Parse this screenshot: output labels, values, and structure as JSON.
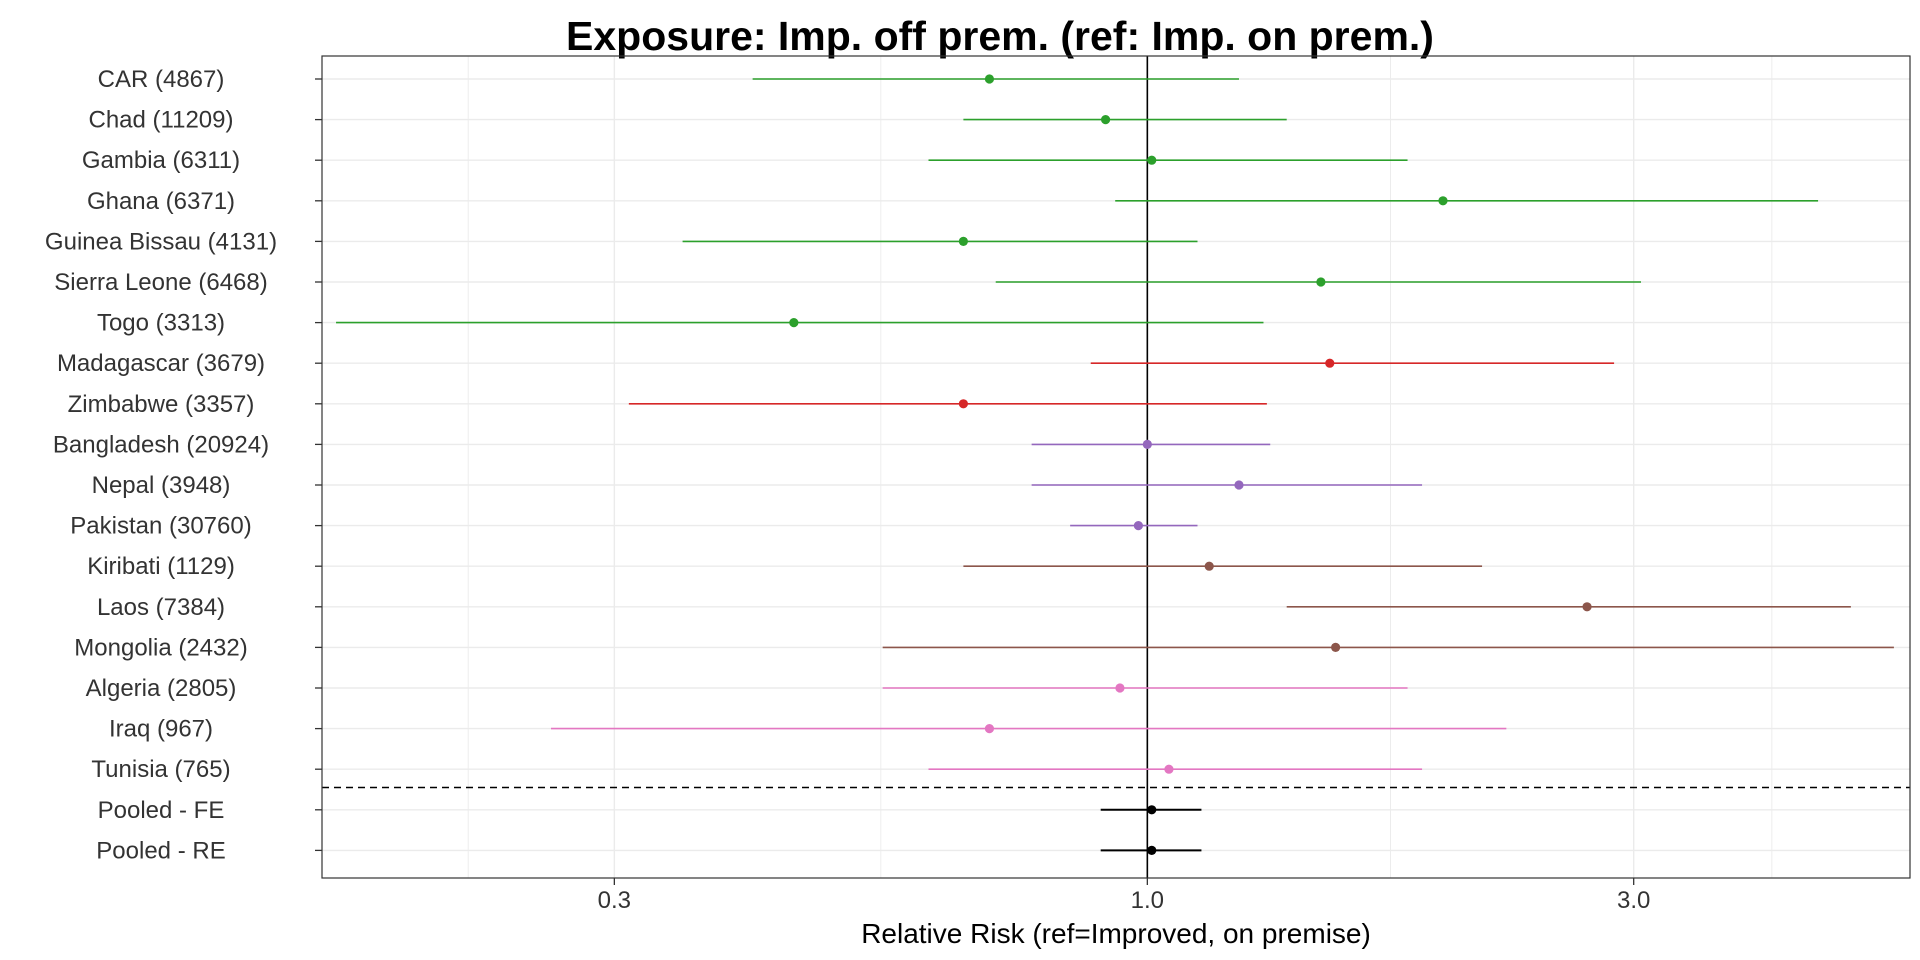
{
  "chart_data": {
    "type": "forest",
    "title": "Exposure: Imp. off prem. (ref: Imp. on prem.)",
    "xlabel": "Relative Risk (ref=Improved, on premise)",
    "x_scale": "log",
    "xlim": [
      0.155,
      5.6
    ],
    "x_ticks": [
      {
        "value": 0.3,
        "label": "0.3"
      },
      {
        "value": 1.0,
        "label": "1.0"
      },
      {
        "value": 3.0,
        "label": "3.0"
      }
    ],
    "reference_line": 1.0,
    "grid": true,
    "separator_after_row": "Tunisia (765)",
    "rows": [
      {
        "label": "CAR (4867)",
        "estimate": 0.7,
        "lower": 0.41,
        "upper": 1.23,
        "color": "#2ca02c"
      },
      {
        "label": "Chad (11209)",
        "estimate": 0.91,
        "lower": 0.66,
        "upper": 1.37,
        "color": "#2ca02c"
      },
      {
        "label": "Gambia (6311)",
        "estimate": 1.01,
        "lower": 0.61,
        "upper": 1.8,
        "color": "#2ca02c"
      },
      {
        "label": "Ghana (6371)",
        "estimate": 1.95,
        "lower": 0.93,
        "upper": 4.55,
        "color": "#2ca02c"
      },
      {
        "label": "Guinea Bissau (4131)",
        "estimate": 0.66,
        "lower": 0.35,
        "upper": 1.12,
        "color": "#2ca02c"
      },
      {
        "label": "Sierra Leone (6468)",
        "estimate": 1.48,
        "lower": 0.71,
        "upper": 3.05,
        "color": "#2ca02c"
      },
      {
        "label": "Togo (3313)",
        "estimate": 0.45,
        "lower": 0.16,
        "upper": 1.3,
        "color": "#2ca02c"
      },
      {
        "label": "Madagascar (3679)",
        "estimate": 1.51,
        "lower": 0.88,
        "upper": 2.87,
        "color": "#d62728"
      },
      {
        "label": "Zimbabwe (3357)",
        "estimate": 0.66,
        "lower": 0.31,
        "upper": 1.31,
        "color": "#d62728"
      },
      {
        "label": "Bangladesh (20924)",
        "estimate": 1.0,
        "lower": 0.77,
        "upper": 1.32,
        "color": "#9467bd"
      },
      {
        "label": "Nepal (3948)",
        "estimate": 1.23,
        "lower": 0.77,
        "upper": 1.86,
        "color": "#9467bd"
      },
      {
        "label": "Pakistan (30760)",
        "estimate": 0.98,
        "lower": 0.84,
        "upper": 1.12,
        "color": "#9467bd"
      },
      {
        "label": "Kiribati (1129)",
        "estimate": 1.15,
        "lower": 0.66,
        "upper": 2.13,
        "color": "#8c564b"
      },
      {
        "label": "Laos (7384)",
        "estimate": 2.7,
        "lower": 1.37,
        "upper": 4.9,
        "color": "#8c564b"
      },
      {
        "label": "Mongolia (2432)",
        "estimate": 1.53,
        "lower": 0.55,
        "upper": 5.4,
        "color": "#8c564b"
      },
      {
        "label": "Algeria (2805)",
        "estimate": 0.94,
        "lower": 0.55,
        "upper": 1.8,
        "color": "#e377c2"
      },
      {
        "label": "Iraq (967)",
        "estimate": 0.7,
        "lower": 0.26,
        "upper": 2.25,
        "color": "#e377c2"
      },
      {
        "label": "Tunisia (765)",
        "estimate": 1.05,
        "lower": 0.61,
        "upper": 1.86,
        "color": "#e377c2"
      },
      {
        "label": "Pooled - FE",
        "estimate": 1.01,
        "lower": 0.9,
        "upper": 1.13,
        "color": "#000000"
      },
      {
        "label": "Pooled - RE",
        "estimate": 1.01,
        "lower": 0.9,
        "upper": 1.13,
        "color": "#000000"
      }
    ]
  }
}
